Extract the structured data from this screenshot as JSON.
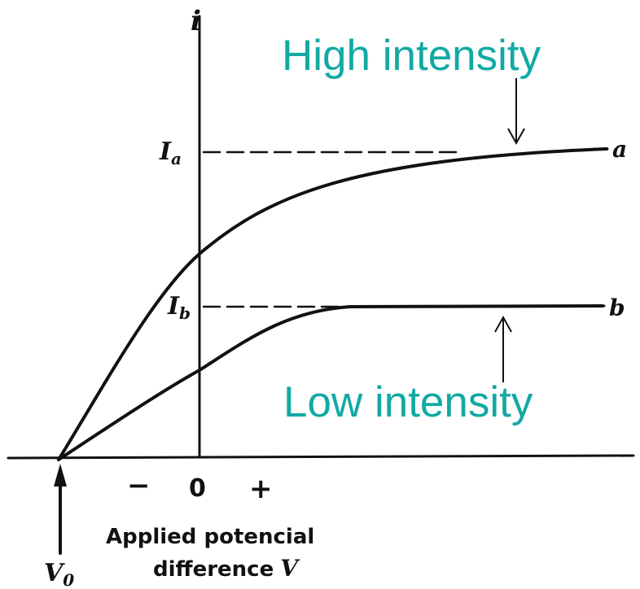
{
  "diagram": {
    "y_axis_label": "i",
    "level_a_label": "I",
    "level_a_sub": "a",
    "level_b_label": "I",
    "level_b_sub": "b",
    "curve_a_label": "a",
    "curve_b_label": "b",
    "minus_sign": "−",
    "zero_label": "0",
    "plus_sign": "+",
    "x_caption_line1": "Applied potencial",
    "x_caption_line2": "difference",
    "x_caption_var": "V",
    "stopping_label": "V",
    "stopping_sub": "0",
    "high_intensity": "High intensity",
    "low_intensity": "Low intensity",
    "colors": {
      "annotation": "#12a9a4",
      "ink": "#111111",
      "background": "#ffffff"
    }
  }
}
